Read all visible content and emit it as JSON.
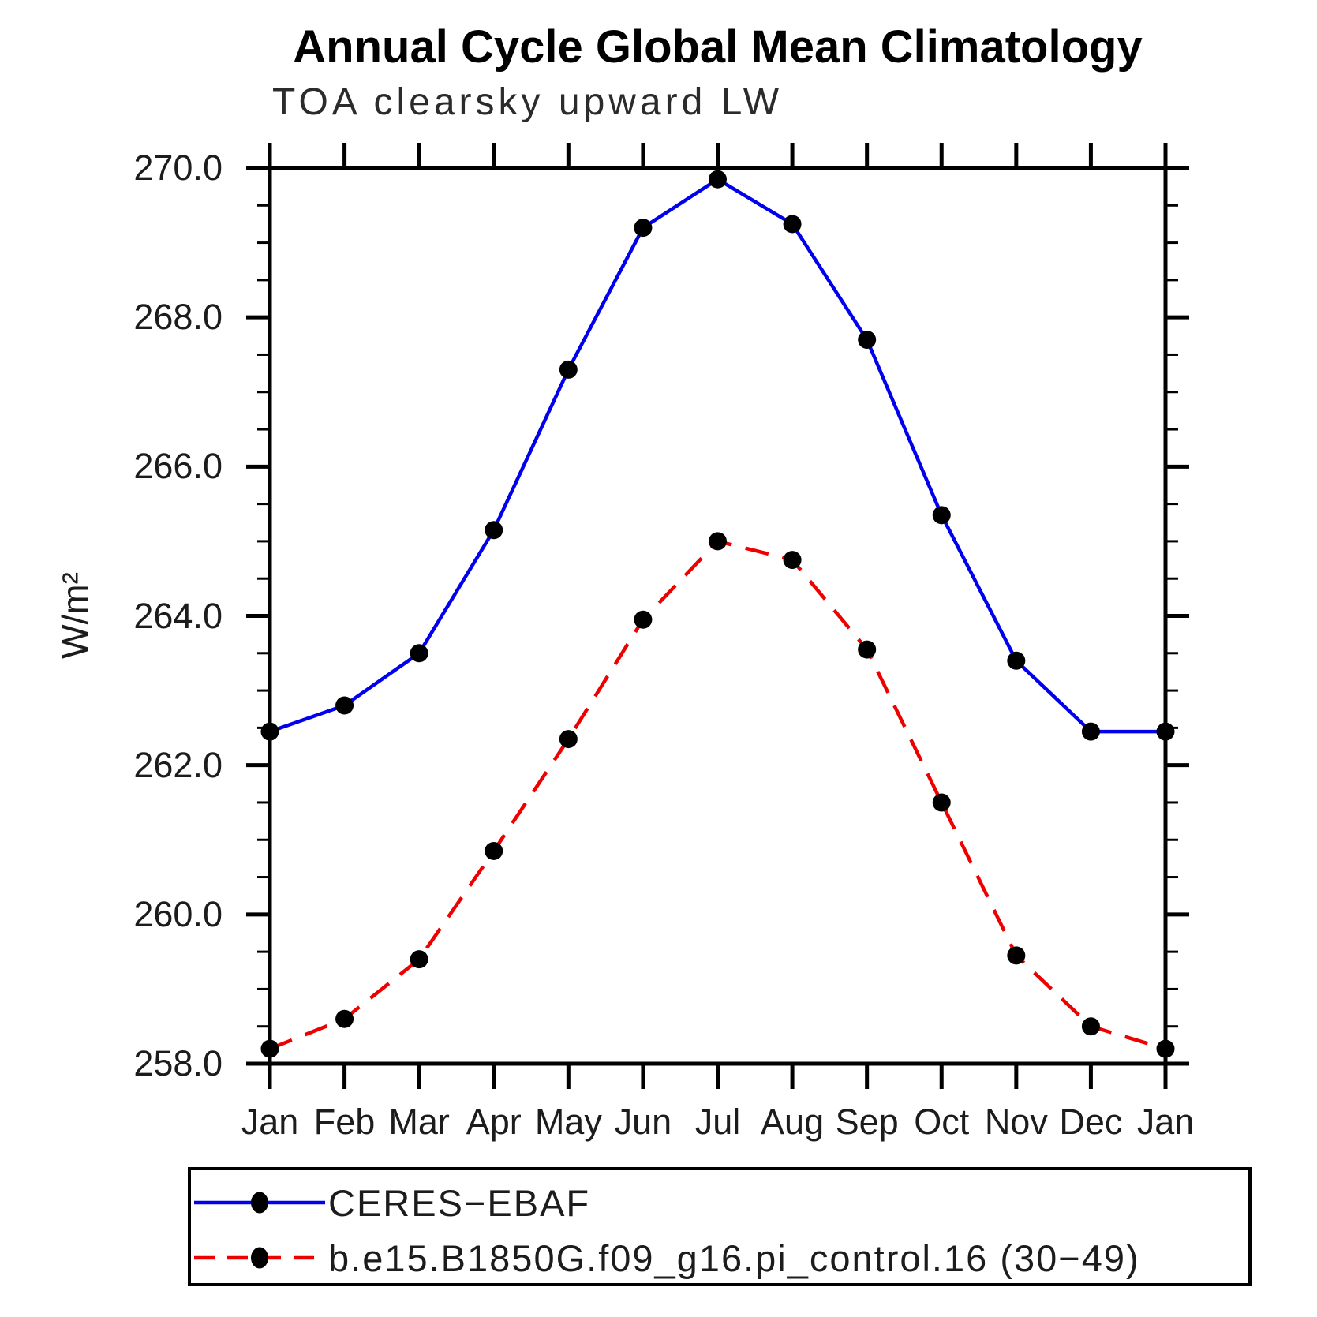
{
  "colors": {
    "background": "#FFFFFF",
    "axis": "#000000",
    "marker": "#000000"
  },
  "chart_data": {
    "type": "line",
    "title": "Annual Cycle Global Mean Climatology",
    "subtitle": "TOA clearsky upward LW",
    "xlabel": "",
    "ylabel": "W/m²",
    "categories": [
      "Jan",
      "Feb",
      "Mar",
      "Apr",
      "May",
      "Jun",
      "Jul",
      "Aug",
      "Sep",
      "Oct",
      "Nov",
      "Dec",
      "Jan"
    ],
    "ylim": [
      258.0,
      270.0
    ],
    "yticks": [
      258.0,
      260.0,
      262.0,
      264.0,
      266.0,
      268.0,
      270.0
    ],
    "ytick_step": 2.0,
    "minor_tick_step": 0.5,
    "grid": false,
    "legend_position": "bottom",
    "series": [
      {
        "name": "CERES−EBAF",
        "line": "solid",
        "color": "#0000EE",
        "marker": "circle",
        "values": [
          262.45,
          262.8,
          263.5,
          265.15,
          267.3,
          269.2,
          269.85,
          269.25,
          267.7,
          265.35,
          263.4,
          262.45,
          262.45
        ]
      },
      {
        "name": "b.e15.B1850G.f09_g16.pi_control.16 (30−49)",
        "line": "dashed",
        "color": "#EE0000",
        "marker": "circle",
        "values": [
          258.2,
          258.6,
          259.4,
          260.85,
          262.35,
          263.95,
          265.0,
          264.75,
          263.55,
          261.5,
          259.45,
          258.5,
          258.2
        ]
      }
    ]
  }
}
